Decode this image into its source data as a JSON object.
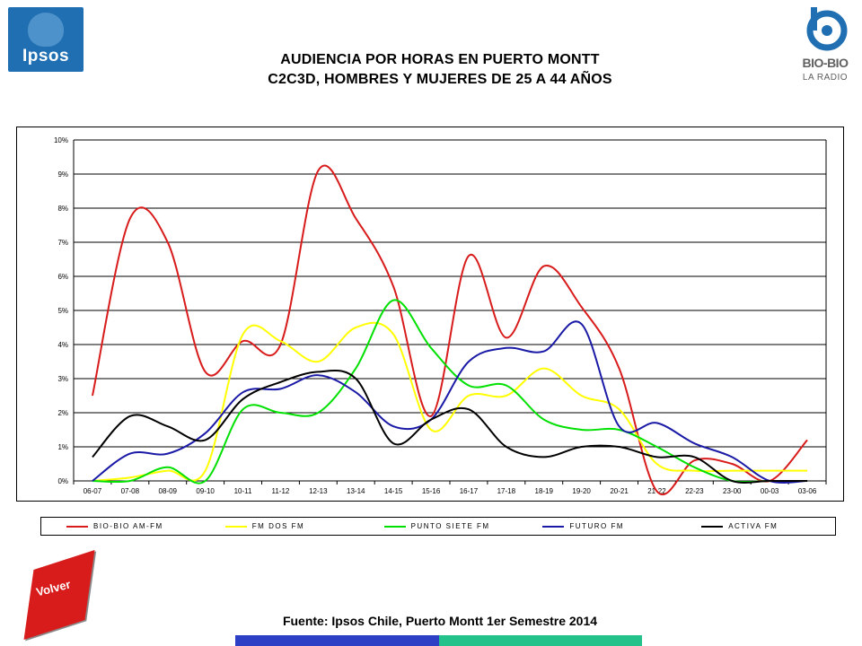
{
  "header": {
    "ipsos_logo_text": "Ipsos",
    "title_line1": "AUDIENCIA POR HORAS EN PUERTO MONTT",
    "title_line2": "C2C3D, HOMBRES Y MUJERES DE 25 A 44 AÑOS",
    "biobio_logo_text": "BIO-BIO",
    "biobio_logo_sub": "LA RADIO"
  },
  "chart_data": {
    "type": "line",
    "title": "",
    "xlabel": "",
    "ylabel": "",
    "categories": [
      "06-07",
      "07-08",
      "08-09",
      "09-10",
      "10-11",
      "11-12",
      "12-13",
      "13-14",
      "14-15",
      "15-16",
      "16-17",
      "17-18",
      "18-19",
      "19-20",
      "20-21",
      "21-22",
      "22-23",
      "23-00",
      "00-03",
      "03-06"
    ],
    "ylim": [
      0,
      10
    ],
    "yticks": [
      0,
      1,
      2,
      3,
      4,
      5,
      6,
      7,
      8,
      9,
      10
    ],
    "ytick_labels": [
      "0%",
      "1%",
      "2%",
      "3%",
      "4%",
      "5%",
      "6%",
      "7%",
      "8%",
      "9%",
      "10%"
    ],
    "grid": "horizontal",
    "legend_position": "bottom",
    "series": [
      {
        "name": "BIO-BIO AM-FM",
        "color": "#d81b1b",
        "values": [
          2.5,
          7.7,
          7.0,
          3.2,
          4.1,
          4.0,
          9.1,
          7.7,
          5.7,
          1.9,
          6.6,
          4.2,
          6.3,
          5.1,
          3.3,
          -0.3,
          0.6,
          0.5,
          0.0,
          1.2
        ]
      },
      {
        "name": "FM DOS FM",
        "color": "#ffff00",
        "values": [
          0.0,
          0.1,
          0.3,
          0.3,
          4.3,
          4.1,
          3.5,
          4.5,
          4.3,
          1.5,
          2.5,
          2.5,
          3.3,
          2.5,
          2.1,
          0.5,
          0.3,
          0.3,
          0.3,
          0.3
        ]
      },
      {
        "name": "PUNTO SIETE FM",
        "color": "#00e000",
        "values": [
          0.0,
          0.0,
          0.4,
          0.0,
          2.1,
          2.0,
          2.0,
          3.3,
          5.3,
          3.9,
          2.8,
          2.8,
          1.8,
          1.5,
          1.5,
          1.0,
          0.4,
          0.0,
          0.0,
          0.0
        ]
      },
      {
        "name": "FUTURO FM",
        "color": "#1a1aa6",
        "values": [
          0.0,
          0.8,
          0.8,
          1.4,
          2.6,
          2.7,
          3.1,
          2.6,
          1.6,
          1.8,
          3.5,
          3.9,
          3.8,
          4.6,
          1.6,
          1.7,
          1.1,
          0.7,
          0.0,
          0.0
        ]
      },
      {
        "name": "ACTIVA FM",
        "color": "#000000",
        "values": [
          0.7,
          1.9,
          1.6,
          1.2,
          2.4,
          2.9,
          3.2,
          3.0,
          1.1,
          1.8,
          2.1,
          1.0,
          0.7,
          1.0,
          1.0,
          0.7,
          0.7,
          0.0,
          0.0,
          0.0
        ]
      }
    ]
  },
  "footer": {
    "volver_label": "Volver",
    "source": "Fuente: Ipsos Chile, Puerto Montt 1er Semestre 2014"
  }
}
